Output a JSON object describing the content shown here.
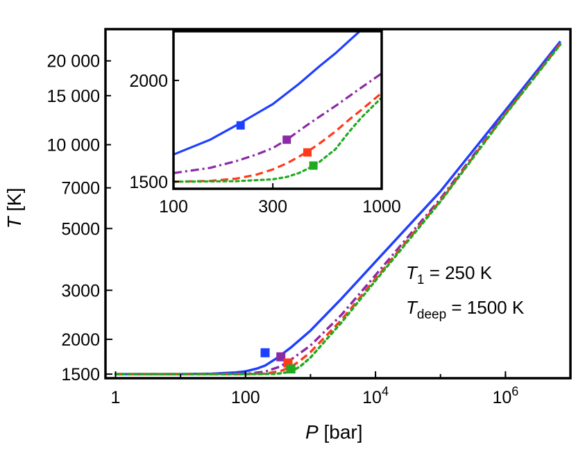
{
  "chart_data": [
    {
      "type": "line",
      "role": "main",
      "xscale": "log",
      "yscale": "log",
      "xlim": [
        0.7,
        10000000
      ],
      "ylim": [
        1450,
        26000
      ],
      "xlabel_italic": "P",
      "xlabel_unit": " [bar]",
      "ylabel_italic": "T",
      "ylabel_unit": " [K]",
      "xticks": [
        {
          "value": 1,
          "base": "1",
          "exp": ""
        },
        {
          "value": 100,
          "base": "100",
          "exp": ""
        },
        {
          "value": 10000,
          "base": "10",
          "exp": "4"
        },
        {
          "value": 1000000,
          "base": "10",
          "exp": "6"
        }
      ],
      "yticks": [
        {
          "value": 1500,
          "label": "1500"
        },
        {
          "value": 2000,
          "label": "2000"
        },
        {
          "value": 3000,
          "label": "3000"
        },
        {
          "value": 5000,
          "label": "5000"
        },
        {
          "value": 7000,
          "label": "7000"
        },
        {
          "value": 10000,
          "label": "10 000"
        },
        {
          "value": 15000,
          "label": "15 000"
        },
        {
          "value": 20000,
          "label": "20 000"
        }
      ],
      "series": [
        {
          "name": "blue-solid",
          "color": "#1f3fff",
          "dash": "solid",
          "x": [
            1,
            10,
            30,
            70,
            100,
            150,
            200,
            300,
            500,
            1000,
            3000,
            10000,
            100000,
            1000000,
            7000000
          ],
          "y": [
            1500,
            1500,
            1505,
            1520,
            1535,
            1570,
            1610,
            1710,
            1870,
            2150,
            2800,
            3800,
            6800,
            13300,
            23500
          ],
          "marker": {
            "x": 200,
            "y": 1790,
            "color": "#1f3fff"
          }
        },
        {
          "name": "purple-dashdot",
          "color": "#8b2aa6",
          "dash": "dashdot",
          "x": [
            1,
            10,
            100,
            200,
            350,
            500,
            1000,
            3000,
            10000,
            100000,
            1000000,
            7000000
          ],
          "y": [
            1500,
            1500,
            1503,
            1530,
            1600,
            1690,
            1900,
            2450,
            3400,
            6400,
            13000,
            23200
          ],
          "marker": {
            "x": 350,
            "y": 1730,
            "color": "#8b2aa6"
          }
        },
        {
          "name": "red-dashed",
          "color": "#ff3a1a",
          "dash": "dashed",
          "x": [
            1,
            10,
            100,
            200,
            350,
            500,
            700,
            1000,
            3000,
            10000,
            100000,
            1000000,
            7000000
          ],
          "y": [
            1500,
            1500,
            1500,
            1505,
            1540,
            1590,
            1680,
            1800,
            2350,
            3300,
            6300,
            12900,
            23000
          ],
          "marker": {
            "x": 450,
            "y": 1645,
            "color": "#ff3a1a"
          }
        },
        {
          "name": "green-dotted",
          "color": "#1faa1f",
          "dash": "dotted",
          "x": [
            1,
            10,
            100,
            300,
            500,
            700,
            1000,
            3000,
            10000,
            100000,
            1000000,
            7000000
          ],
          "y": [
            1500,
            1500,
            1500,
            1503,
            1530,
            1600,
            1720,
            2300,
            3250,
            6250,
            12850,
            22900
          ],
          "marker": {
            "x": 500,
            "y": 1565,
            "color": "#1faa1f"
          }
        }
      ],
      "annotation_line1_italic": "T",
      "annotation_line1_sub": "1",
      "annotation_line1_rest": " = 250 K",
      "annotation_line2_italic": "T",
      "annotation_line2_sub": "deep",
      "annotation_line2_rest": " = 1500 K"
    },
    {
      "type": "line",
      "role": "inset",
      "xscale": "log",
      "yscale": "log",
      "xlim": [
        100,
        1000
      ],
      "ylim": [
        1470,
        2300
      ],
      "xticks": [
        {
          "value": 100,
          "label": "100"
        },
        {
          "value": 300,
          "label": "300"
        },
        {
          "value": 1000,
          "label": "1000"
        }
      ],
      "yticks": [
        {
          "value": 1500,
          "label": "1500"
        },
        {
          "value": 2000,
          "label": "2000"
        }
      ],
      "series": [
        {
          "name": "blue-solid",
          "color": "#1f3fff",
          "dash": "solid",
          "x": [
            100,
            150,
            200,
            300,
            400,
            500,
            600,
            700,
            800
          ],
          "y": [
            1620,
            1690,
            1760,
            1870,
            1980,
            2080,
            2160,
            2240,
            2310
          ],
          "marker": {
            "x": 210,
            "y": 1760,
            "color": "#1f3fff"
          }
        },
        {
          "name": "purple-dashdot",
          "color": "#8b2aa6",
          "dash": "dashdot",
          "x": [
            100,
            150,
            200,
            250,
            300,
            350,
            450,
            600,
            800,
            1000
          ],
          "y": [
            1537,
            1560,
            1590,
            1620,
            1650,
            1690,
            1770,
            1860,
            1960,
            2040
          ],
          "marker": {
            "x": 350,
            "y": 1690,
            "color": "#8b2aa6"
          }
        },
        {
          "name": "red-dashed",
          "color": "#ff3a1a",
          "dash": "dashed",
          "x": [
            100,
            150,
            200,
            250,
            300,
            350,
            400,
            450,
            500,
            600,
            700,
            800,
            1000
          ],
          "y": [
            1500,
            1503,
            1513,
            1530,
            1553,
            1580,
            1610,
            1640,
            1670,
            1730,
            1790,
            1840,
            1930
          ],
          "marker": {
            "x": 440,
            "y": 1630,
            "color": "#ff3a1a"
          }
        },
        {
          "name": "green-dotted",
          "color": "#1faa1f",
          "dash": "dotted",
          "x": [
            100,
            200,
            300,
            350,
            400,
            450,
            500,
            600,
            700,
            800,
            1000
          ],
          "y": [
            1500,
            1502,
            1510,
            1520,
            1537,
            1560,
            1585,
            1645,
            1730,
            1800,
            1905
          ],
          "marker": {
            "x": 470,
            "y": 1570,
            "color": "#1faa1f"
          }
        }
      ]
    }
  ]
}
